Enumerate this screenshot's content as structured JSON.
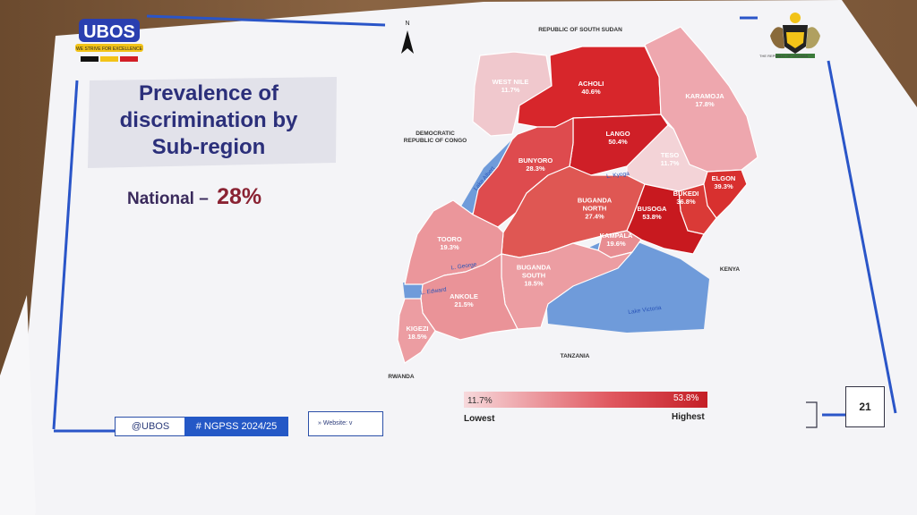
{
  "slide": {
    "title_lines": [
      "Prevalence of",
      "discrimination by",
      "Sub-region"
    ],
    "national_label": "National – ",
    "national_value": "28%",
    "page_number": "21"
  },
  "logo": {
    "text": "UBOS",
    "motto": "WE STRIVE FOR EXCELLENCE"
  },
  "coat_of_arms_caption": "THE REPUBLIC OF UGANDA",
  "compass_letter": "N",
  "footer": {
    "handle": "@UBOS",
    "hashtag": "# NGPSS 2024/25",
    "website": "» Website: v"
  },
  "legend": {
    "min_value": "11.7%",
    "max_value": "53.8%",
    "low_label": "Lowest",
    "high_label": "Highest",
    "color_low": "#f7d9dc",
    "color_high": "#c41f26"
  },
  "neighbours": {
    "south_sudan": "REPUBLIC OF SOUTH SUDAN",
    "drc": [
      "DEMOCRATIC",
      "REPUBLIC OF CONGO"
    ],
    "kenya": "KENYA",
    "tanzania": "TANZANIA",
    "rwanda": "RWANDA"
  },
  "lakes": {
    "albert": "Lake Albert",
    "kyoga": "L. Kyoga",
    "george": "L. George",
    "edward": "L. Edward",
    "victoria": "Lake Victoria"
  },
  "regions": [
    {
      "name": "WEST NILE",
      "value": "11.7%",
      "color": "#f0c8cd"
    },
    {
      "name": "ACHOLI",
      "value": "40.6%",
      "color": "#d7262b"
    },
    {
      "name": "KARAMOJA",
      "value": "17.8%",
      "color": "#eea7ae"
    },
    {
      "name": "LANGO",
      "value": "50.4%",
      "color": "#cf1f27"
    },
    {
      "name": "TESO",
      "value": "11.7%",
      "color": "#f3d3d7"
    },
    {
      "name": "BUNYORO",
      "value": "28.3%",
      "color": "#de4b4e"
    },
    {
      "name": "ELGON",
      "value": "39.3%",
      "color": "#d8302f"
    },
    {
      "name": "BUKEDI",
      "value": "36.8%",
      "color": "#da3a37"
    },
    {
      "name": "BUGANDA NORTH",
      "value": "27.4%",
      "color": "#df5753"
    },
    {
      "name": "BUSOGA",
      "value": "53.8%",
      "color": "#c8191f"
    },
    {
      "name": "KAMPALA",
      "value": "19.6%",
      "color": "#e88d92"
    },
    {
      "name": "TOORO",
      "value": "19.3%",
      "color": "#eb969b"
    },
    {
      "name": "BUGANDA SOUTH",
      "value": "18.5%",
      "color": "#ec9da2"
    },
    {
      "name": "ANKOLE",
      "value": "21.5%",
      "color": "#ea9398"
    },
    {
      "name": "KIGEZI",
      "value": "18.5%",
      "color": "#ec9da2"
    }
  ]
}
